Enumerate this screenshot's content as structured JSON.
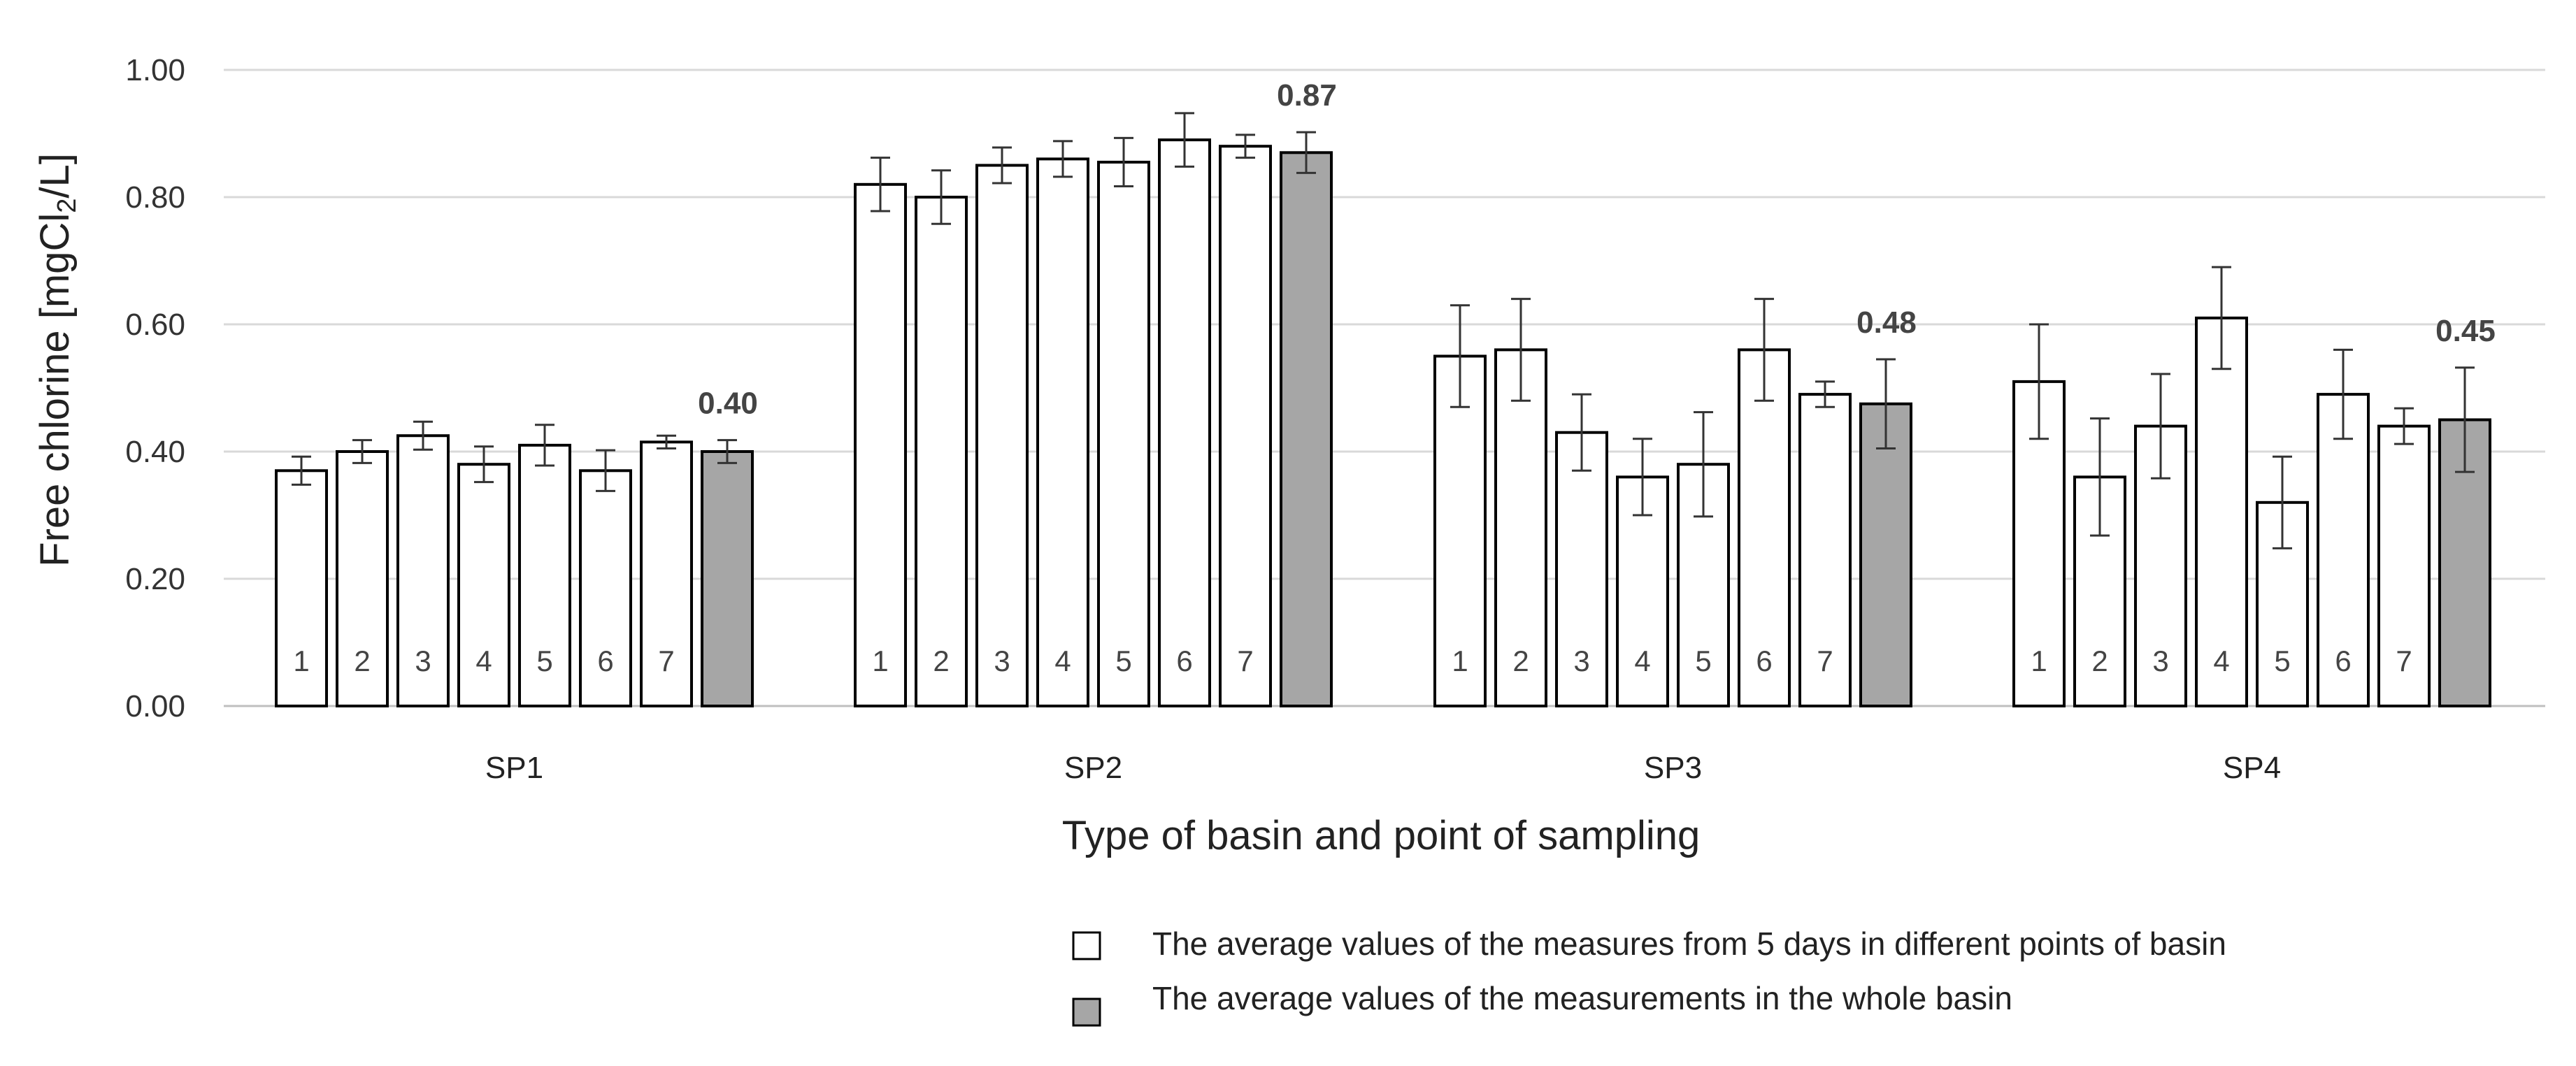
{
  "chart_data": {
    "type": "bar",
    "title": "",
    "xlabel": "Type of basin and point of sampling",
    "ylabel_prefix": "Free chlorine  [mgCl",
    "ylabel_sub": "2",
    "ylabel_suffix": "/L]",
    "ylim": [
      0,
      1.0
    ],
    "yticks": [
      "0.00",
      "0.20",
      "0.40",
      "0.60",
      "0.80",
      "1.00"
    ],
    "ytick_values": [
      0,
      0.2,
      0.4,
      0.6,
      0.8,
      1.0
    ],
    "grid": true,
    "colors": {
      "point_bar": "#ffffff",
      "basin_bar": "#a6a6a6",
      "bar_edge": "#000000",
      "grid": "#d9d9d9",
      "error": "#333333"
    },
    "groups": [
      {
        "name": "SP1",
        "points": [
          "1",
          "2",
          "3",
          "4",
          "5",
          "6",
          "7"
        ],
        "point_values": [
          0.37,
          0.4,
          0.425,
          0.38,
          0.41,
          0.37,
          0.415
        ],
        "point_errors": [
          0.022,
          0.018,
          0.022,
          0.028,
          0.032,
          0.032,
          0.01
        ],
        "basin_value": 0.4,
        "basin_error": 0.018,
        "basin_label": "0.40"
      },
      {
        "name": "SP2",
        "points": [
          "1",
          "2",
          "3",
          "4",
          "5",
          "6",
          "7"
        ],
        "point_values": [
          0.82,
          0.8,
          0.85,
          0.86,
          0.855,
          0.89,
          0.88
        ],
        "point_errors": [
          0.042,
          0.042,
          0.028,
          0.028,
          0.038,
          0.042,
          0.018
        ],
        "basin_value": 0.87,
        "basin_error": 0.032,
        "basin_label": "0.87"
      },
      {
        "name": "SP3",
        "points": [
          "1",
          "2",
          "3",
          "4",
          "5",
          "6",
          "7"
        ],
        "point_values": [
          0.55,
          0.56,
          0.43,
          0.36,
          0.38,
          0.56,
          0.49
        ],
        "point_errors": [
          0.08,
          0.08,
          0.06,
          0.06,
          0.082,
          0.08,
          0.02
        ],
        "basin_value": 0.475,
        "basin_error": 0.07,
        "basin_label": "0.48"
      },
      {
        "name": "SP4",
        "points": [
          "1",
          "2",
          "3",
          "4",
          "5",
          "6",
          "7"
        ],
        "point_values": [
          0.51,
          0.36,
          0.44,
          0.61,
          0.32,
          0.49,
          0.44
        ],
        "point_errors": [
          0.09,
          0.092,
          0.082,
          0.08,
          0.072,
          0.07,
          0.028
        ],
        "basin_value": 0.45,
        "basin_error": 0.082,
        "basin_label": "0.45"
      }
    ],
    "legend": [
      {
        "label": "The average values of the measures from 5 days in different points of basin",
        "kind": "point"
      },
      {
        "label": "The average values of the measurements in the whole basin",
        "kind": "basin"
      }
    ],
    "legend_position": "bottom-right"
  }
}
